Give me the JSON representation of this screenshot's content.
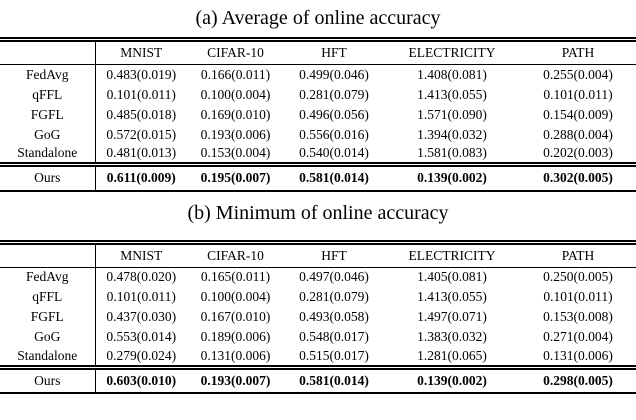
{
  "page": {
    "background_color": "#ffffff",
    "text_color": "#000000"
  },
  "tables": [
    {
      "caption": "(a) Average of online accuracy",
      "columns": [
        "",
        "MNIST",
        "CIFAR-10",
        "HFT",
        "ELECTRICITY",
        "PATH"
      ],
      "rows": [
        {
          "label": "FedAvg",
          "values": [
            "0.483(0.019)",
            "0.166(0.011)",
            "0.499(0.046)",
            "1.408(0.081)",
            "0.255(0.004)"
          ]
        },
        {
          "label": "qFFL",
          "values": [
            "0.101(0.011)",
            "0.100(0.004)",
            "0.281(0.079)",
            "1.413(0.055)",
            "0.101(0.011)"
          ]
        },
        {
          "label": "FGFL",
          "values": [
            "0.485(0.018)",
            "0.169(0.010)",
            "0.496(0.056)",
            "1.571(0.090)",
            "0.154(0.009)"
          ]
        },
        {
          "label": "GoG",
          "values": [
            "0.572(0.015)",
            "0.193(0.006)",
            "0.556(0.016)",
            "1.394(0.032)",
            "0.288(0.004)"
          ]
        },
        {
          "label": "Standalone",
          "values": [
            "0.481(0.013)",
            "0.153(0.004)",
            "0.540(0.014)",
            "1.581(0.083)",
            "0.202(0.003)"
          ]
        }
      ],
      "highlight_row": {
        "label": "Ours",
        "bold_values": true,
        "values": [
          "0.611(0.009)",
          "0.195(0.007)",
          "0.581(0.014)",
          "0.139(0.002)",
          "0.302(0.005)"
        ]
      }
    },
    {
      "caption": "(b) Minimum of online accuracy",
      "columns": [
        "",
        "MNIST",
        "CIFAR-10",
        "HFT",
        "ELECTRICITY",
        "PATH"
      ],
      "rows": [
        {
          "label": "FedAvg",
          "values": [
            "0.478(0.020)",
            "0.165(0.011)",
            "0.497(0.046)",
            "1.405(0.081)",
            "0.250(0.005)"
          ]
        },
        {
          "label": "qFFL",
          "values": [
            "0.101(0.011)",
            "0.100(0.004)",
            "0.281(0.079)",
            "1.413(0.055)",
            "0.101(0.011)"
          ]
        },
        {
          "label": "FGFL",
          "values": [
            "0.437(0.030)",
            "0.167(0.010)",
            "0.493(0.058)",
            "1.497(0.071)",
            "0.153(0.008)"
          ]
        },
        {
          "label": "GoG",
          "values": [
            "0.553(0.014)",
            "0.189(0.006)",
            "0.548(0.017)",
            "1.383(0.032)",
            "0.271(0.004)"
          ]
        },
        {
          "label": "Standalone",
          "values": [
            "0.279(0.024)",
            "0.131(0.006)",
            "0.515(0.017)",
            "1.281(0.065)",
            "0.131(0.006)"
          ]
        }
      ],
      "highlight_row": {
        "label": "Ours",
        "bold_values": true,
        "values": [
          "0.603(0.010)",
          "0.193(0.007)",
          "0.581(0.014)",
          "0.139(0.002)",
          "0.298(0.005)"
        ]
      }
    }
  ]
}
